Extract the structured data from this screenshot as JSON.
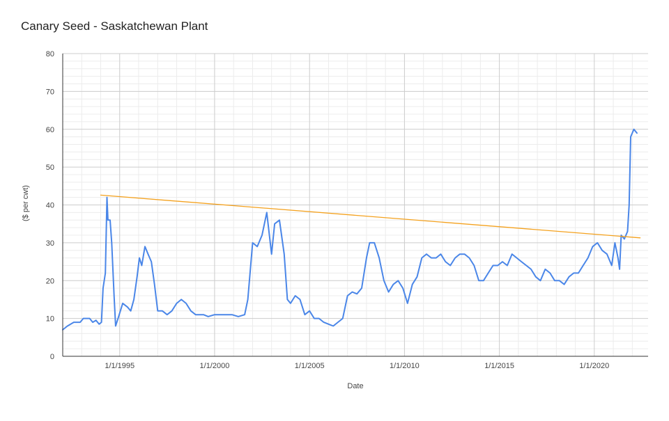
{
  "chart_data": {
    "type": "line",
    "title": "Canary Seed - Saskatchewan Plant",
    "xlabel": "Date",
    "ylabel": "($ per cwt)",
    "xlim": [
      "1992-01-01",
      "2022-11-01"
    ],
    "ylim": [
      0,
      80
    ],
    "x_ticks": [
      "1/1/1995",
      "1/1/2000",
      "1/1/2005",
      "1/1/2010",
      "1/1/2015",
      "1/1/2020"
    ],
    "y_ticks": [
      "0",
      "10",
      "20",
      "30",
      "40",
      "50",
      "60",
      "70",
      "80"
    ],
    "grid": true,
    "legend": "none",
    "series": [
      {
        "color": "#4a86e8",
        "points": [
          [
            "1992-01-01",
            7
          ],
          [
            "1992-04-01",
            8
          ],
          [
            "1992-08-01",
            9
          ],
          [
            "1992-12-01",
            9
          ],
          [
            "1993-02-01",
            10
          ],
          [
            "1993-06-01",
            10
          ],
          [
            "1993-08-01",
            9
          ],
          [
            "1993-10-01",
            9.5
          ],
          [
            "1993-12-01",
            8.5
          ],
          [
            "1994-01-15",
            9
          ],
          [
            "1994-02-15",
            18
          ],
          [
            "1994-04-01",
            22
          ],
          [
            "1994-05-01",
            42
          ],
          [
            "1994-05-20",
            36
          ],
          [
            "1994-07-01",
            36
          ],
          [
            "1994-08-01",
            30
          ],
          [
            "1994-09-15",
            16
          ],
          [
            "1994-10-15",
            8
          ],
          [
            "1994-12-01",
            10
          ],
          [
            "1995-03-01",
            14
          ],
          [
            "1995-06-01",
            13
          ],
          [
            "1995-08-01",
            12
          ],
          [
            "1995-10-01",
            15
          ],
          [
            "1995-12-01",
            21
          ],
          [
            "1996-01-15",
            26
          ],
          [
            "1996-03-01",
            24
          ],
          [
            "1996-05-01",
            29
          ],
          [
            "1996-07-01",
            27
          ],
          [
            "1996-09-01",
            25
          ],
          [
            "1996-11-01",
            19
          ],
          [
            "1997-01-01",
            12
          ],
          [
            "1997-04-01",
            12
          ],
          [
            "1997-07-01",
            11
          ],
          [
            "1997-10-01",
            12
          ],
          [
            "1998-01-01",
            14
          ],
          [
            "1998-04-01",
            15
          ],
          [
            "1998-07-01",
            14
          ],
          [
            "1998-10-01",
            12
          ],
          [
            "1999-01-01",
            11
          ],
          [
            "1999-06-01",
            11
          ],
          [
            "1999-09-01",
            10.5
          ],
          [
            "2000-01-01",
            11
          ],
          [
            "2000-06-01",
            11
          ],
          [
            "2000-12-01",
            11
          ],
          [
            "2001-04-01",
            10.5
          ],
          [
            "2001-08-01",
            11
          ],
          [
            "2001-10-01",
            15
          ],
          [
            "2002-01-01",
            30
          ],
          [
            "2002-04-01",
            29
          ],
          [
            "2002-07-01",
            32
          ],
          [
            "2002-10-01",
            38
          ],
          [
            "2003-01-01",
            27
          ],
          [
            "2003-03-01",
            35
          ],
          [
            "2003-06-01",
            36
          ],
          [
            "2003-09-01",
            27
          ],
          [
            "2003-11-01",
            15
          ],
          [
            "2004-01-01",
            14
          ],
          [
            "2004-04-01",
            16
          ],
          [
            "2004-07-01",
            15
          ],
          [
            "2004-10-01",
            11
          ],
          [
            "2005-01-01",
            12
          ],
          [
            "2005-04-01",
            10
          ],
          [
            "2005-07-01",
            10
          ],
          [
            "2005-10-01",
            9
          ],
          [
            "2006-01-01",
            8.5
          ],
          [
            "2006-04-01",
            8
          ],
          [
            "2006-07-01",
            9
          ],
          [
            "2006-10-01",
            10
          ],
          [
            "2007-01-01",
            16
          ],
          [
            "2007-04-01",
            17
          ],
          [
            "2007-07-01",
            16.5
          ],
          [
            "2007-10-01",
            18
          ],
          [
            "2008-01-01",
            26
          ],
          [
            "2008-03-01",
            30
          ],
          [
            "2008-06-01",
            30
          ],
          [
            "2008-09-01",
            26
          ],
          [
            "2008-12-01",
            20
          ],
          [
            "2009-03-01",
            17
          ],
          [
            "2009-06-01",
            19
          ],
          [
            "2009-09-01",
            20
          ],
          [
            "2009-12-01",
            18
          ],
          [
            "2010-03-01",
            14
          ],
          [
            "2010-06-01",
            19
          ],
          [
            "2010-09-01",
            21
          ],
          [
            "2010-12-01",
            26
          ],
          [
            "2011-03-01",
            27
          ],
          [
            "2011-06-01",
            26
          ],
          [
            "2011-09-01",
            26
          ],
          [
            "2011-12-01",
            27
          ],
          [
            "2012-03-01",
            25
          ],
          [
            "2012-06-01",
            24
          ],
          [
            "2012-09-01",
            26
          ],
          [
            "2012-12-01",
            27
          ],
          [
            "2013-03-01",
            27
          ],
          [
            "2013-06-01",
            26
          ],
          [
            "2013-09-01",
            24
          ],
          [
            "2013-12-01",
            20
          ],
          [
            "2014-03-01",
            20
          ],
          [
            "2014-06-01",
            22
          ],
          [
            "2014-09-01",
            24
          ],
          [
            "2014-12-01",
            24
          ],
          [
            "2015-03-01",
            25
          ],
          [
            "2015-06-01",
            24
          ],
          [
            "2015-09-01",
            27
          ],
          [
            "2015-12-01",
            26
          ],
          [
            "2016-03-01",
            25
          ],
          [
            "2016-06-01",
            24
          ],
          [
            "2016-09-01",
            23
          ],
          [
            "2016-12-01",
            21
          ],
          [
            "2017-03-01",
            20
          ],
          [
            "2017-06-01",
            23
          ],
          [
            "2017-09-01",
            22
          ],
          [
            "2017-12-01",
            20
          ],
          [
            "2018-03-01",
            20
          ],
          [
            "2018-06-01",
            19
          ],
          [
            "2018-09-01",
            21
          ],
          [
            "2018-12-01",
            22
          ],
          [
            "2019-03-01",
            22
          ],
          [
            "2019-06-01",
            24
          ],
          [
            "2019-09-01",
            26
          ],
          [
            "2019-12-01",
            29
          ],
          [
            "2020-03-01",
            30
          ],
          [
            "2020-06-01",
            28
          ],
          [
            "2020-09-01",
            27
          ],
          [
            "2020-12-01",
            24
          ],
          [
            "2021-02-01",
            30
          ],
          [
            "2021-04-01",
            26
          ],
          [
            "2021-05-01",
            23
          ],
          [
            "2021-06-01",
            32
          ],
          [
            "2021-08-01",
            31
          ],
          [
            "2021-10-01",
            33
          ],
          [
            "2021-11-01",
            40
          ],
          [
            "2021-12-01",
            58
          ],
          [
            "2022-02-01",
            60
          ],
          [
            "2022-04-01",
            59
          ]
        ]
      },
      {
        "color": "#f4a11d",
        "points": [
          [
            "1994-01-01",
            42.6
          ],
          [
            "2022-06-01",
            31.3
          ]
        ]
      }
    ]
  }
}
